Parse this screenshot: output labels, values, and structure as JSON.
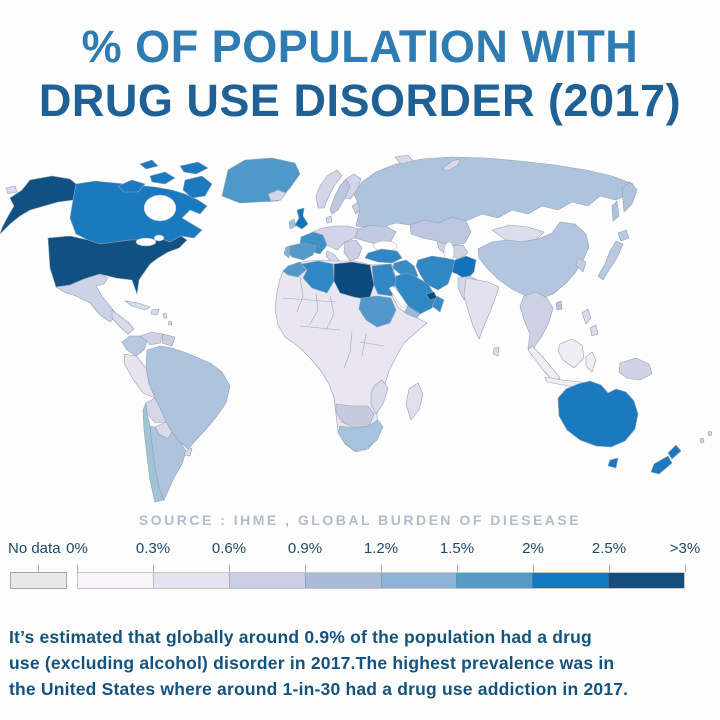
{
  "title": {
    "line1": "% OF POPULATION WITH",
    "line2": "DRUG USE DISORDER (2017)"
  },
  "source_label": "SOURCE : IHME , GLOBAL BURDEN OF DIESEASE",
  "legend": {
    "no_data_label": "No data",
    "no_data_color": "#e8e8e8",
    "tick_labels": [
      "0%",
      "0.3%",
      "0.6%",
      "0.9%",
      "1.2%",
      "1.5%",
      "2%",
      "2.5%",
      ">3%"
    ],
    "segment_colors": [
      "#f9f4f9",
      "#e6e2f0",
      "#cbcee3",
      "#aabad9",
      "#8cb2d5",
      "#569bc7",
      "#1278bf",
      "#134e7d"
    ]
  },
  "caption": {
    "lines": [
      "It’s estimated that globally around 0.9% of the population had a drug",
      "use (excluding alcohol) disorder in 2017.The highest prevalence was in",
      "the United States where around 1-in-30 had a drug use addiction in 2017."
    ]
  },
  "map": {
    "region_colors": {
      "usa": "#115181",
      "canada": "#1b79c0",
      "greenland": "#4f98c9",
      "st_lawrence_island": "#d6daea",
      "mexico": "#ccd2e7",
      "central_america": "#d9daea",
      "cuba": "#d7dcea",
      "colombia": "#b7c8e1",
      "venezuela": "#cfd2e5",
      "guyana": "#cacde2",
      "brazil": "#aec3dd",
      "peru": "#e7e3ef",
      "bolivia": "#d5d6e9",
      "paraguay": "#d9daea",
      "uruguay": "#d9daea",
      "chile": "#9fc4d8",
      "argentina": "#aec3dd",
      "iceland": "#d2d6e8",
      "uk": "#0f74bc",
      "ireland": "#a2c1dd",
      "norway": "#d3d6e9",
      "sweden": "#bdc8e0",
      "finland": "#d3d6e9",
      "denmark": "#d2d5e8",
      "baltics": "#c8cde3",
      "france": "#3e90c5",
      "west_europe": "#d2d5e8",
      "italy": "#d6d8ea",
      "balkans": "#cdd0e5",
      "east_europe": "#c0cbe2",
      "spain": "#549aca",
      "portugal": "#80b2d5",
      "russia": "#aec4de",
      "svalbard": "#d6daea",
      "kazakhstan": "#bdc6e0",
      "central_asia": "#cdd2e6",
      "mongolia": "#dddcec",
      "china": "#b3c6e0",
      "korea": "#c5cde3",
      "japan": "#bac9e1",
      "taiwan": "#b3c6e0",
      "india": "#e4e1ee",
      "sri_lanka": "#d9daea",
      "pakistan": "#d4d7e9",
      "afghanistan": "#1472ba",
      "iran": "#2f87c4",
      "turkey": "#2f87c4",
      "iraq_levant": "#3a8cc6",
      "saudi_arabia": "#2f87c4",
      "uae": "#0d4a7c",
      "oman": "#3a8cc6",
      "yemen": "#9cb9d8",
      "morocco": "#5298ca",
      "algeria": "#2f87c4",
      "libya": "#0d4a7c",
      "egypt": "#2f87c4",
      "africa_pale": "#eae6f1",
      "sudan": "#5298ca",
      "namibia_botswana": "#c7cadd",
      "south_africa": "#a6c3de",
      "mozambique": "#d9daea",
      "madagascar": "#e1deed",
      "se_asia": "#ccd1e6",
      "indonesia": "#f1edf5",
      "philippines": "#d9daea",
      "new_guinea": "#ced3e7",
      "australia": "#1b79c0",
      "new_zealand": "#1b79c0",
      "pacific_islands": "#cdd3e6"
    }
  },
  "chart_data": {
    "type": "heatmap",
    "title": "% OF POPULATION WITH DRUG USE DISORDER (2017)",
    "source": "SOURCE : IHME , GLOBAL BURDEN OF DIESEASE",
    "legend_bins": [
      "No data",
      "0%",
      "0.3%",
      "0.6%",
      "0.9%",
      "1.2%",
      "1.5%",
      "2%",
      "2.5%",
      ">3%"
    ],
    "bin_colors": [
      "#e8e8e8",
      "#f9f4f9",
      "#e6e2f0",
      "#cbcee3",
      "#aabad9",
      "#8cb2d5",
      "#569bc7",
      "#1278bf",
      "#134e7d"
    ],
    "legend_position": "bottom",
    "regions": [
      {
        "name": "United States",
        "bucket": ">3%"
      },
      {
        "name": "Canada",
        "bucket": "2-2.5%"
      },
      {
        "name": "Greenland",
        "bucket": "1.5-2%"
      },
      {
        "name": "Mexico",
        "bucket": "0.6-0.9%"
      },
      {
        "name": "Central America",
        "bucket": "0.3-0.6%"
      },
      {
        "name": "Cuba",
        "bucket": "0.3-0.6%"
      },
      {
        "name": "Colombia",
        "bucket": "0.9-1.2%"
      },
      {
        "name": "Venezuela",
        "bucket": "0.6-0.9%"
      },
      {
        "name": "Brazil",
        "bucket": "0.9-1.2%"
      },
      {
        "name": "Peru",
        "bucket": "0-0.3%"
      },
      {
        "name": "Bolivia",
        "bucket": "0.3-0.6%"
      },
      {
        "name": "Paraguay",
        "bucket": "0.3-0.6%"
      },
      {
        "name": "Chile",
        "bucket": "1.2-1.5%"
      },
      {
        "name": "Argentina",
        "bucket": "0.9-1.2%"
      },
      {
        "name": "United Kingdom",
        "bucket": "2-2.5%"
      },
      {
        "name": "Ireland",
        "bucket": "1.2-1.5%"
      },
      {
        "name": "France",
        "bucket": "1.5-2%"
      },
      {
        "name": "Spain",
        "bucket": "1.5-2%"
      },
      {
        "name": "Portugal",
        "bucket": "1.2-1.5%"
      },
      {
        "name": "Central Europe",
        "bucket": "0.6-0.9%"
      },
      {
        "name": "Scandinavia",
        "bucket": "0.6-0.9%"
      },
      {
        "name": "Eastern Europe",
        "bucket": "0.9-1.2%"
      },
      {
        "name": "Russia",
        "bucket": "0.9-1.2%"
      },
      {
        "name": "Kazakhstan",
        "bucket": "0.9-1.2%"
      },
      {
        "name": "Central Asia",
        "bucket": "0.6-0.9%"
      },
      {
        "name": "Mongolia",
        "bucket": "0.3-0.6%"
      },
      {
        "name": "China",
        "bucket": "0.9-1.2%"
      },
      {
        "name": "Japan",
        "bucket": "0.9-1.2%"
      },
      {
        "name": "South Korea",
        "bucket": "0.9-1.2%"
      },
      {
        "name": "India",
        "bucket": "0.3-0.6%"
      },
      {
        "name": "Pakistan",
        "bucket": "0.3-0.6%"
      },
      {
        "name": "Afghanistan",
        "bucket": "2-2.5%"
      },
      {
        "name": "Iran",
        "bucket": "1.5-2%"
      },
      {
        "name": "Turkey",
        "bucket": "1.5-2%"
      },
      {
        "name": "Iraq / Levant",
        "bucket": "1.5-2%"
      },
      {
        "name": "Saudi Arabia",
        "bucket": "1.5-2%"
      },
      {
        "name": "United Arab Emirates",
        "bucket": "2.5-3%"
      },
      {
        "name": "Oman",
        "bucket": "1.5-2%"
      },
      {
        "name": "Yemen",
        "bucket": "1.2-1.5%"
      },
      {
        "name": "Morocco",
        "bucket": "1.2-1.5%"
      },
      {
        "name": "Algeria",
        "bucket": "1.5-2%"
      },
      {
        "name": "Libya",
        "bucket": ">3%"
      },
      {
        "name": "Egypt",
        "bucket": "1.5-2%"
      },
      {
        "name": "Sudan",
        "bucket": "1.2-1.5%"
      },
      {
        "name": "West & Central Africa",
        "bucket": "0-0.3%"
      },
      {
        "name": "Horn of Africa",
        "bucket": "0-0.3%"
      },
      {
        "name": "Namibia / Botswana",
        "bucket": "0.6-0.9%"
      },
      {
        "name": "South Africa",
        "bucket": "0.9-1.2%"
      },
      {
        "name": "Mozambique",
        "bucket": "0.3-0.6%"
      },
      {
        "name": "Madagascar",
        "bucket": "0.3-0.6%"
      },
      {
        "name": "Mainland Southeast Asia",
        "bucket": "0.6-0.9%"
      },
      {
        "name": "Indonesia",
        "bucket": "0-0.3%"
      },
      {
        "name": "Philippines",
        "bucket": "0.3-0.6%"
      },
      {
        "name": "Papua New Guinea",
        "bucket": "0.6-0.9%"
      },
      {
        "name": "Australia",
        "bucket": "2-2.5%"
      },
      {
        "name": "New Zealand",
        "bucket": "2-2.5%"
      }
    ]
  }
}
